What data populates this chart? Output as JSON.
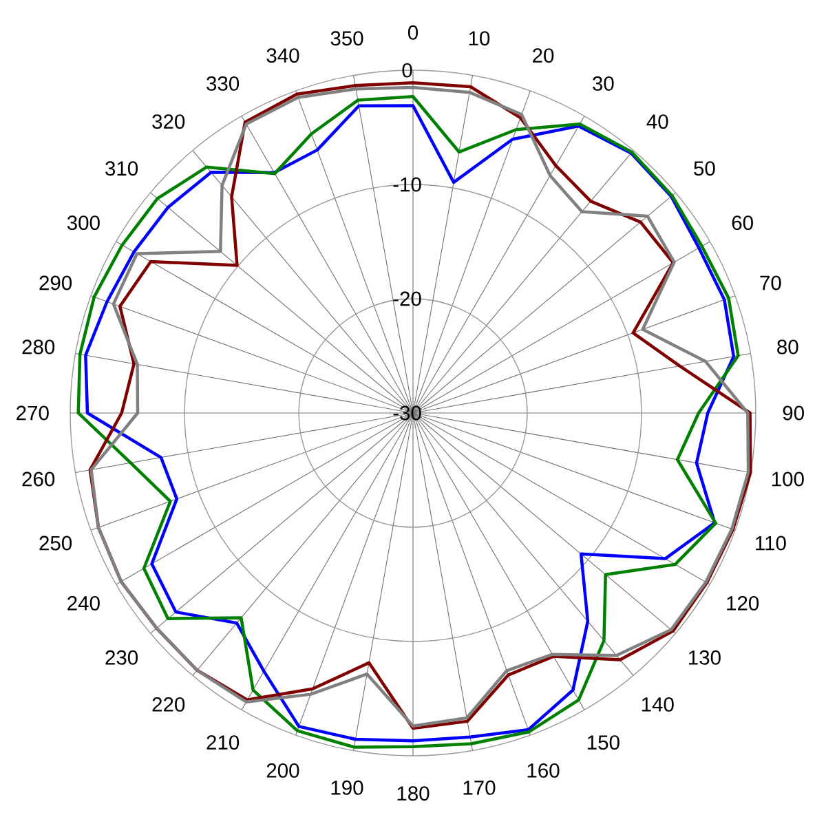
{
  "chart_data": {
    "type": "radar",
    "categories": [
      "0",
      "10",
      "20",
      "30",
      "40",
      "50",
      "60",
      "70",
      "80",
      "90",
      "100",
      "110",
      "120",
      "130",
      "140",
      "150",
      "160",
      "170",
      "180",
      "190",
      "200",
      "210",
      "220",
      "230",
      "240",
      "250",
      "260",
      "270",
      "280",
      "290",
      "300",
      "310",
      "320",
      "330",
      "340",
      "350"
    ],
    "ylim": [
      -30,
      0
    ],
    "yticks": [
      -30,
      -20,
      -10,
      0
    ],
    "grid": true,
    "series": [
      {
        "color": "#0000ff",
        "values": [
          -3.1,
          -9.5,
          -4.5,
          -1,
          -0.3,
          -0.5,
          -1.1,
          -1,
          -1.5,
          -4.2,
          -4.8,
          -1.9,
          -4.5,
          -10.8,
          -6.2,
          -2,
          -0.5,
          -1.2,
          -1.3,
          -1,
          -0.8,
          -3.9,
          -6,
          -2.9,
          -3.6,
          -8,
          -7.6,
          -1.5,
          -0.9,
          -1.5,
          -1.8,
          -2,
          -2.5,
          -5.7,
          -5.5,
          -2.7
        ]
      },
      {
        "color": "#008000",
        "values": [
          -2.3,
          -6.8,
          -3.6,
          -0.8,
          -0.2,
          -0.4,
          -0.8,
          -0.6,
          -1.1,
          -5,
          -6.5,
          -1.8,
          -3.5,
          -8,
          -4,
          -1,
          -0.3,
          -0.6,
          -0.8,
          -0.3,
          -0.4,
          -2,
          -6.6,
          -2,
          -2.8,
          -7.4,
          -4.9,
          -0.7,
          -0.4,
          -0.3,
          -0.6,
          -0.8,
          -1.9,
          -5.8,
          -4,
          -2.2
        ]
      },
      {
        "color": "#800000",
        "values": [
          -1.1,
          -1,
          -2.5,
          -5,
          -5.8,
          -4,
          -3.7,
          -9.5,
          -6.3,
          -0.5,
          0,
          -0.2,
          -0.3,
          -0.3,
          -1.8,
          -5.4,
          -5.6,
          -2.6,
          -2.4,
          -7.8,
          -4.3,
          -1,
          -0.6,
          -0.7,
          -0.5,
          -0.7,
          -1.3,
          -4.5,
          -5.2,
          -2.7,
          -3.5,
          -9.9,
          -5.3,
          -0.6,
          -0.3,
          -0.9
        ]
      },
      {
        "color": "#808080",
        "values": [
          -1.5,
          -1.5,
          -2.2,
          -6,
          -7,
          -3.2,
          -3.6,
          -8.6,
          -4,
          -0.7,
          -0.2,
          -0.3,
          -0.4,
          -0.5,
          -2.3,
          -5.6,
          -6,
          -2.9,
          -2.6,
          -6.8,
          -3.8,
          -0.8,
          -0.6,
          -0.7,
          -0.5,
          -0.7,
          -1.4,
          -5.9,
          -5.5,
          -2.1,
          -2.1,
          -8,
          -4,
          -0.8,
          -0.6,
          -1.2
        ]
      }
    ]
  }
}
